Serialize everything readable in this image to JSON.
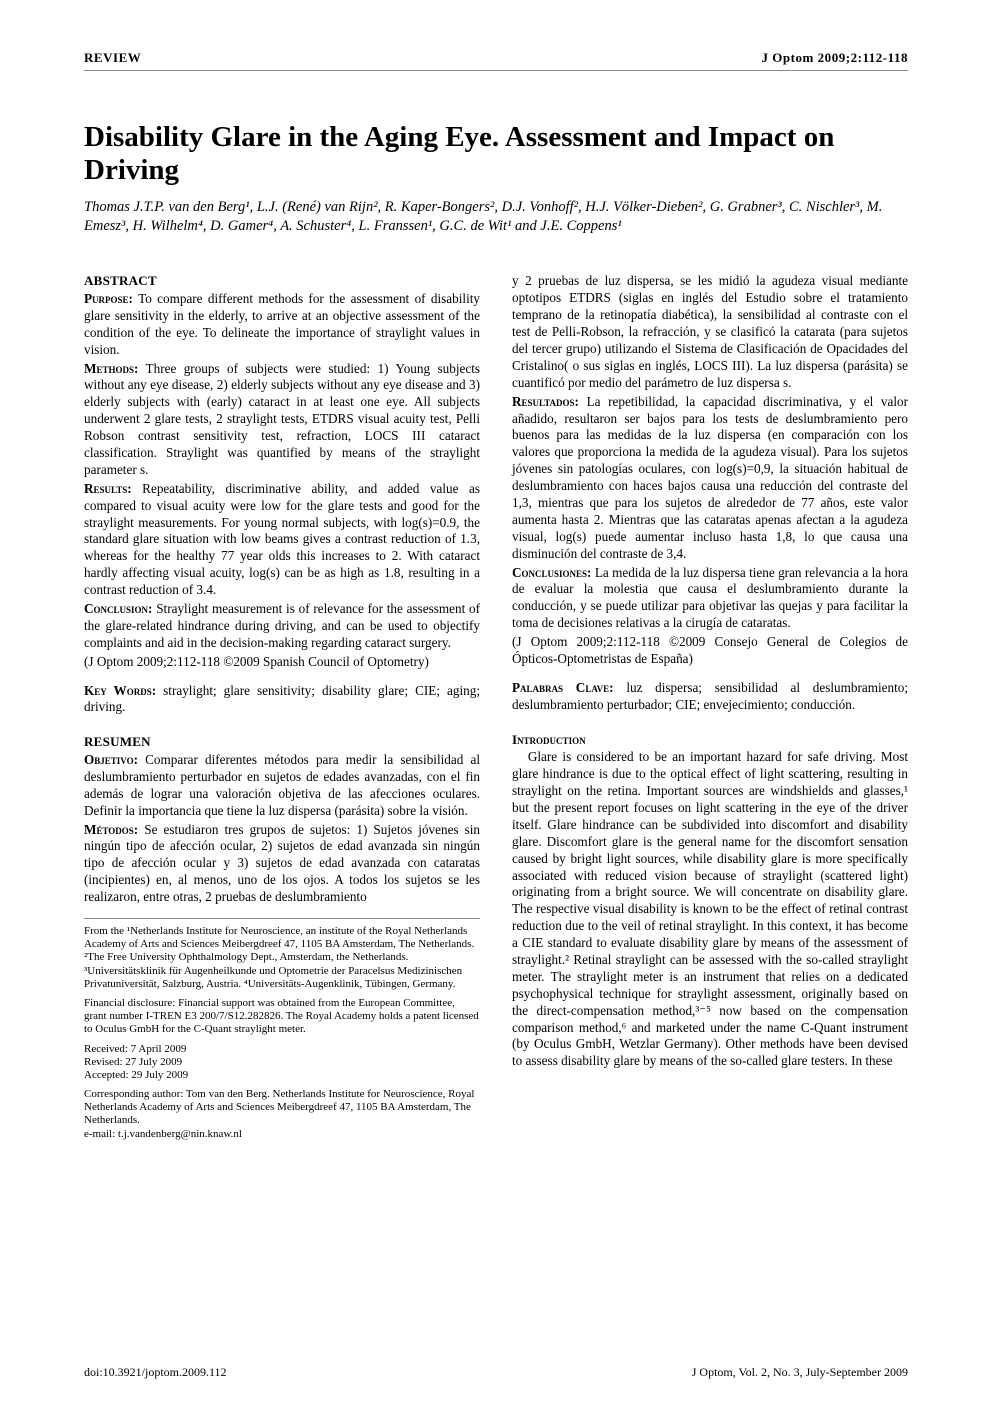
{
  "header": {
    "section": "REVIEW",
    "citation": "J Optom 2009;2:112-118"
  },
  "title": "Disability Glare in the Aging Eye. Assessment and Impact on Driving",
  "authors": "Thomas J.T.P. van den Berg¹, L.J. (René) van Rijn², R. Kaper-Bongers², D.J. Vonhoff², H.J. Völker-Dieben², G. Grabner³, C. Nischler³, M. Emesz³, H. Wilhelm⁴, D. Gamer⁴, A. Schuster⁴, L. Franssen¹, G.C. de Wit¹ and J.E. Coppens¹",
  "abstract": {
    "heading": "ABSTRACT",
    "purpose_label": "Purpose:",
    "purpose": " To compare different methods for the assessment of disability glare sensitivity in the elderly, to arrive at an objective assessment of the condition of the eye. To delineate the importance of straylight values in vision.",
    "methods_label": "Methods:",
    "methods": " Three groups of subjects were studied: 1) Young subjects without any eye disease, 2) elderly subjects without any eye disease and 3) elderly subjects with (early) cataract in at least one eye. All subjects underwent 2 glare tests, 2 straylight tests, ETDRS visual acuity test, Pelli Robson contrast sensitivity test, refraction, LOCS III cataract classification. Straylight was quantified by means of the straylight parameter s.",
    "results_label": "Results:",
    "results": " Repeatability, discriminative ability, and added value as compared to visual acuity were low for the glare tests and good for the straylight measurements. For young normal subjects, with log(s)=0.9, the standard glare situation with low beams gives a contrast reduction of 1.3, whereas for the healthy 77 year olds this increases to 2. With cataract hardly affecting visual acuity, log(s) can be as high as 1.8, resulting in a contrast reduction of 3.4.",
    "conclusion_label": "Conclusion:",
    "conclusion": " Straylight measurement is of relevance for the assessment of the glare-related hindrance during driving, and can be used to objectify complaints and aid in the decision-making regarding cataract surgery.",
    "cite": "(J Optom 2009;2:112-118 ©2009 Spanish Council of Optometry)",
    "keywords_label": "Key Words:",
    "keywords": " straylight; glare sensitivity; disability glare; CIE; aging; driving."
  },
  "resumen": {
    "heading": "RESUMEN",
    "objetivo_label": "Objetivo:",
    "objetivo": " Comparar diferentes métodos para medir la sensibilidad al deslumbramiento perturbador en sujetos de edades avanzadas, con el fin además de lograr una valoración objetiva de las afecciones oculares. Definir la importancia que tiene la luz dispersa (parásita) sobre la visión.",
    "metodos_label": "Métodos:",
    "metodos": " Se estudiaron tres grupos de sujetos: 1) Sujetos jóvenes sin ningún tipo de afección ocular, 2) sujetos de edad avanzada sin ningún tipo de afección ocular y 3) sujetos de edad avanzada con cataratas (incipientes) en, al menos, uno de los ojos. A todos los sujetos se les realizaron, entre otras, 2 pruebas de deslumbramiento",
    "cont": "y 2 pruebas de luz dispersa, se les midió la agudeza visual mediante optotipos ETDRS (siglas en inglés del Estudio sobre el tratamiento temprano de la retinopatía diabética), la sensibilidad al contraste con el test de Pelli-Robson, la refracción, y se clasificó la catarata (para sujetos del tercer grupo) utilizando el Sistema de Clasificación de Opacidades del Cristalino( o sus siglas en inglés, LOCS III). La luz dispersa (parásita) se cuantificó por medio del parámetro de luz dispersa s.",
    "resultados_label": "Resultados:",
    "resultados": " La repetibilidad, la capacidad discriminativa, y el valor añadido, resultaron ser bajos para los tests de deslumbramiento pero buenos para las medidas de la luz dispersa (en comparación con los valores que proporciona la medida de la agudeza visual). Para los sujetos jóvenes sin patologías oculares, con log(s)=0,9, la situación habitual de deslumbramiento con haces bajos causa una reducción del contraste del 1,3, mientras que para los sujetos de alrededor de 77 años, este valor aumenta hasta 2. Mientras que las cataratas apenas afectan a la agudeza visual, log(s) puede aumentar incluso hasta 1,8, lo que causa una disminución del contraste de 3,4.",
    "conclusiones_label": "Conclusiones:",
    "conclusiones": " La medida de la luz dispersa tiene gran relevancia a la hora de evaluar la molestia que causa el deslumbramiento durante la conducción, y se puede utilizar para objetivar las quejas y para facilitar la toma de decisiones relativas a la cirugía de cataratas.",
    "cite": "(J Optom 2009;2:112-118 ©2009 Consejo General de Colegios de Ópticos-Optometristas de España)",
    "palabras_label": "Palabras Clave:",
    "palabras": " luz dispersa; sensibilidad al deslumbramiento; deslumbramiento perturbador; CIE; envejecimiento; conducción."
  },
  "intro": {
    "heading": "Introduction",
    "body": "Glare is considered to be an important hazard for safe driving. Most glare hindrance is due to the optical effect of light scattering, resulting in straylight on the retina. Important sources are windshields and glasses,¹ but the present report focuses on light scattering in the eye of the driver itself. Glare hindrance can be subdivided into discomfort and disability glare. Discomfort glare is the general name for the discomfort sensation caused by bright light sources, while disability glare is more specifically associated with reduced vision because of straylight (scattered light) originating from a bright source. We will concentrate on disability glare. The respective visual disability is known to be the effect of retinal contrast reduction due to the veil of retinal straylight. In this context, it has become a CIE standard to evaluate disability glare by means of the assessment of straylight.² Retinal straylight can be assessed with the so-called straylight meter. The straylight meter is an instrument that relies on a dedicated psychophysical technique for straylight assessment, originally based on the direct-compensation method,³⁻⁵ now based on the compensation comparison method,⁶ and marketed under the name C-Quant instrument (by Oculus GmbH, Wetzlar Germany). Other methods have been devised to assess disability glare by means of the so-called glare testers. In these"
  },
  "affil": {
    "from": "From the ¹Netherlands Institute for Neuroscience, an institute of the Royal Netherlands Academy of Arts and Sciences Meibergdreef 47, 1105 BA Amsterdam, The Netherlands. ²The Free University Ophthalmology Dept., Amsterdam, the Netherlands. ³Universitätsklinik für Augenheilkunde und Optometrie der Paracelsus Medizinischen Privatuniversität, Salzburg, Austria. ⁴Universitäts-Augenklinik, Tübingen, Germany.",
    "financial": "Financial disclosure: Financial support was obtained from the European Committee, grant number I-TREN E3 200/7/S12.282826. The Royal Academy holds a patent licensed to Oculus GmbH for the C-Quant straylight meter.",
    "received": "Received: 7 April 2009",
    "revised": "Revised: 27 July 2009",
    "accepted": "Accepted: 29 July 2009",
    "corresponding": "Corresponding author: Tom van den Berg. Netherlands Institute for Neuroscience, Royal Netherlands Academy of Arts and Sciences Meibergdreef 47, 1105 BA Amsterdam, The Netherlands.",
    "email": "e-mail: t.j.vandenberg@nin.knaw.nl"
  },
  "footer": {
    "doi": "doi:10.3921/joptom.2009.112",
    "issue": "J Optom, Vol. 2, No. 3, July-September 2009"
  }
}
